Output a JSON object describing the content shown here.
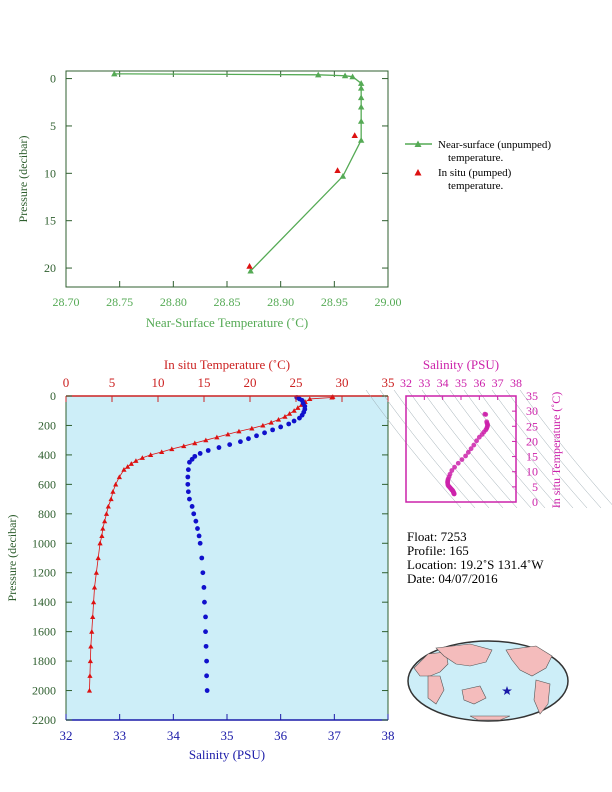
{
  "chart_data": [
    {
      "type": "line",
      "xlabel": "Near-Surface Temperature (˚C)",
      "ylabel": "Pressure (decibar)",
      "xlim": [
        28.7,
        29.0
      ],
      "ylim": [
        22,
        -0.8
      ],
      "xticks": [
        "28.70",
        "28.75",
        "28.80",
        "28.85",
        "28.90",
        "28.95",
        "29.00"
      ],
      "yticks": [
        "0",
        "5",
        "10",
        "15",
        "20"
      ],
      "series": [
        {
          "name": "Near-surface (unpumped) temperature.",
          "x": [
            28.745,
            28.935,
            28.96,
            28.967,
            28.975,
            28.975,
            28.975,
            28.975,
            28.975,
            28.975,
            28.958,
            28.872
          ],
          "y": [
            -0.5,
            -0.4,
            -0.3,
            -0.2,
            0.5,
            1.0,
            2.0,
            3.0,
            4.5,
            6.5,
            10.3,
            20.3
          ]
        },
        {
          "name": "In situ (pumped) temperature.",
          "x": [
            28.969,
            28.953,
            28.871
          ],
          "y": [
            6.0,
            9.7,
            19.8
          ]
        }
      ],
      "legend": [
        "Near-surface (unpumped)",
        "temperature.",
        "In situ (pumped)",
        "temperature."
      ]
    },
    {
      "type": "scatter",
      "ylabel": "Pressure (decibar)",
      "xlabel_bottom": "Salinity (PSU)",
      "xlabel_top": "In situ Temperature (˚C)",
      "salinity_lim": [
        32,
        38
      ],
      "temperature_lim": [
        0,
        35
      ],
      "pressure_lim": [
        0,
        2200
      ],
      "salinity_ticks": [
        "32",
        "33",
        "34",
        "35",
        "36",
        "37",
        "38"
      ],
      "temperature_ticks": [
        "0",
        "5",
        "10",
        "15",
        "20",
        "25",
        "30",
        "35"
      ],
      "pressure_ticks": [
        "0",
        "200",
        "400",
        "600",
        "800",
        "1000",
        "1200",
        "1400",
        "1600",
        "1800",
        "2000",
        "2200"
      ],
      "temperature_series": {
        "pressure": [
          5,
          10,
          20,
          40,
          60,
          80,
          100,
          120,
          140,
          160,
          180,
          200,
          220,
          240,
          260,
          280,
          300,
          320,
          340,
          360,
          380,
          400,
          420,
          440,
          460,
          480,
          500,
          550,
          600,
          650,
          700,
          750,
          800,
          850,
          900,
          950,
          1000,
          1100,
          1200,
          1300,
          1400,
          1500,
          1600,
          1700,
          1800,
          1900,
          2000
        ],
        "temperature": [
          29.0,
          28.9,
          26.5,
          26.0,
          25.6,
          25.2,
          24.8,
          24.3,
          23.8,
          23.1,
          22.3,
          21.4,
          20.2,
          18.8,
          17.6,
          16.4,
          15.2,
          14.0,
          12.8,
          11.5,
          10.4,
          9.2,
          8.3,
          7.6,
          7.1,
          6.7,
          6.3,
          5.8,
          5.4,
          5.1,
          4.9,
          4.6,
          4.4,
          4.2,
          4.0,
          3.9,
          3.7,
          3.5,
          3.3,
          3.1,
          3.0,
          2.9,
          2.8,
          2.7,
          2.65,
          2.6,
          2.55
        ]
      },
      "salinity_series": {
        "pressure": [
          10,
          20,
          30,
          50,
          70,
          90,
          110,
          130,
          150,
          170,
          190,
          210,
          230,
          250,
          270,
          290,
          310,
          330,
          350,
          370,
          390,
          410,
          430,
          450,
          500,
          550,
          600,
          650,
          700,
          750,
          800,
          850,
          900,
          950,
          1000,
          1100,
          1200,
          1300,
          1400,
          1500,
          1600,
          1700,
          1800,
          1900,
          2000
        ],
        "salinity": [
          36.3,
          36.35,
          36.4,
          36.42,
          36.45,
          36.45,
          36.43,
          36.4,
          36.35,
          36.25,
          36.15,
          36.0,
          35.85,
          35.7,
          35.55,
          35.4,
          35.25,
          35.05,
          34.85,
          34.65,
          34.5,
          34.4,
          34.35,
          34.3,
          34.28,
          34.27,
          34.27,
          34.28,
          34.3,
          34.35,
          34.38,
          34.42,
          34.45,
          34.48,
          34.5,
          34.53,
          34.55,
          34.57,
          34.58,
          34.6,
          34.6,
          34.61,
          34.62,
          34.62,
          34.63
        ]
      },
      "inset": {
        "xlabel": "Salinity (PSU)",
        "ylabel": "In situ Temperature (˚C)",
        "xticks": [
          "32",
          "33",
          "34",
          "35",
          "36",
          "37",
          "38"
        ],
        "yticks": [
          "0",
          "5",
          "10",
          "15",
          "20",
          "25",
          "30",
          "35"
        ]
      }
    }
  ],
  "info": {
    "float": "Float:  7253",
    "profile": "Profile:  165",
    "location": "Location:  19.2˚S  131.4˚W",
    "date": "Date:  04/07/2016"
  },
  "colors": {
    "green": "#55aa55",
    "red": "#dd1111",
    "blue": "#1010cc",
    "magenta": "#cc22aa",
    "plot_bg": "#cdeef8"
  },
  "map_icon": "world-map-with-star-marker"
}
